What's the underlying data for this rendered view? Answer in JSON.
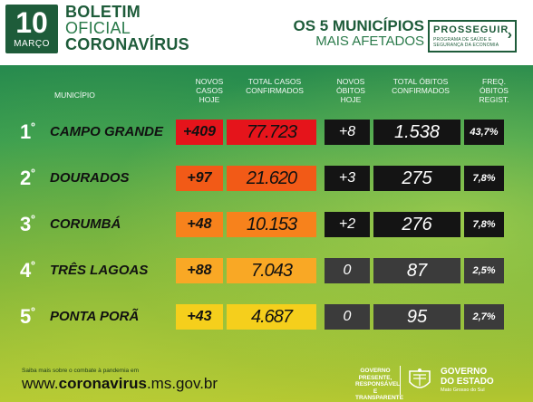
{
  "header": {
    "day": "10",
    "month": "MARÇO",
    "title_line1": "BOLETIM",
    "title_line2": "OFICIAL",
    "title_line3": "CORONAVÍRUS",
    "subtitle_line1": "OS 5 MUNICÍPIOS",
    "subtitle_line2": "MAIS AFETADOS",
    "partner_logo": "PROSSEGUIR",
    "partner_sub": "PROGRAMA DE SAÚDE E SEGURANÇA DA ECONOMIA"
  },
  "columns": {
    "municipio": "MUNICÍPIO",
    "novos_casos": "NOVOS CASOS HOJE",
    "total_casos": "TOTAL CASOS CONFIRMADOS",
    "novos_obitos": "NOVOS ÓBITOS HOJE",
    "total_obitos": "TOTAL ÓBITOS CONFIRMADOS",
    "freq_obitos": "FREQ. ÓBITOS REGIST."
  },
  "rows": [
    {
      "rank": "1",
      "suffix": "º",
      "city": "CAMPO GRANDE",
      "new_cases": "+409",
      "total_cases": "77.723",
      "new_deaths": "+8",
      "total_deaths": "1.538",
      "freq": "43,7%"
    },
    {
      "rank": "2",
      "suffix": "º",
      "city": "DOURADOS",
      "new_cases": "+97",
      "total_cases": "21.620",
      "new_deaths": "+3",
      "total_deaths": "275",
      "freq": "7,8%"
    },
    {
      "rank": "3",
      "suffix": "º",
      "city": "CORUMBÁ",
      "new_cases": "+48",
      "total_cases": "10.153",
      "new_deaths": "+2",
      "total_deaths": "276",
      "freq": "7,8%"
    },
    {
      "rank": "4",
      "suffix": "º",
      "city": "TRÊS LAGOAS",
      "new_cases": "+88",
      "total_cases": "7.043",
      "new_deaths": "0",
      "total_deaths": "87",
      "freq": "2,5%"
    },
    {
      "rank": "5",
      "suffix": "º",
      "city": "PONTA PORÃ",
      "new_cases": "+43",
      "total_cases": "4.687",
      "new_deaths": "0",
      "total_deaths": "95",
      "freq": "2,7%"
    }
  ],
  "colors": {
    "row1": "#e5141b",
    "row2": "#f25a17",
    "row3": "#f7821c",
    "row4": "#f9a825",
    "row5": "#f5cf1c",
    "brand_green": "#1e5c3a"
  },
  "footer": {
    "small_text": "Saiba mais sobre o combate à pandemia em",
    "url_prefix": "www.",
    "url_bold": "coronavirus",
    "url_suffix": ".ms.gov.br",
    "slogan": "GOVERNO PRESENTE, RESPONSÁVEL E TRANSPARENTE",
    "gov_line1": "GOVERNO",
    "gov_line2": "DO ESTADO",
    "gov_state": "Mato Grosso do Sul"
  }
}
